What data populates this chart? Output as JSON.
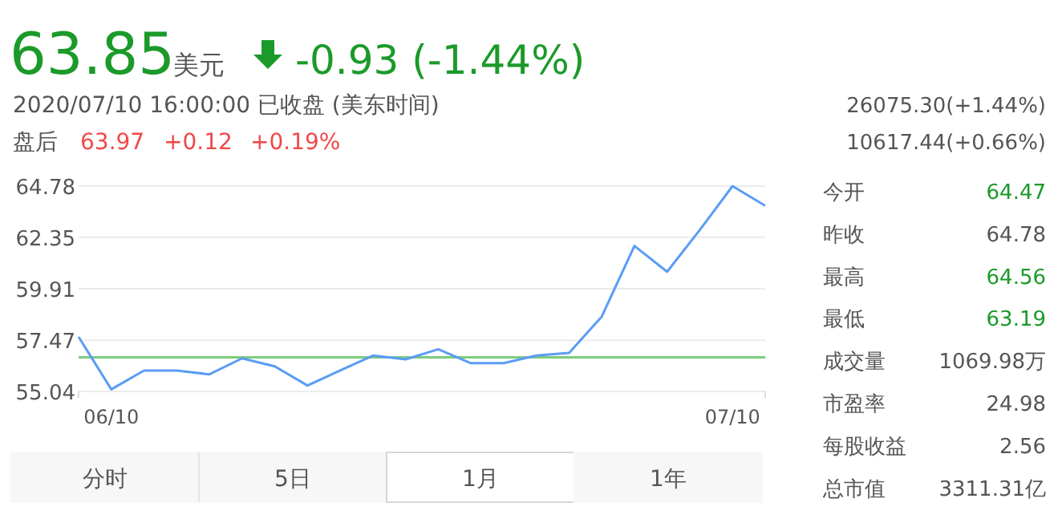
{
  "chart_data": [
    {
      "type": "line",
      "title": "63.85",
      "subtitle": "2020/07/10 16:00:00  已收盘  (美东时间)",
      "annotations": [
        "美元",
        "-0.93 (-1.44%)",
        "盘后",
        "63.97",
        "+0.12",
        "+0.19%",
        "26075.30(+1.44%)",
        "10617.44(+0.66%)",
        "分时",
        "5日",
        "1月",
        "1年"
      ],
      "categories": [
        null,
        "06/10",
        null,
        null,
        null,
        null,
        null,
        null,
        null,
        null,
        null,
        null,
        null,
        null,
        null,
        null,
        null,
        null,
        null,
        null,
        "07/10",
        null
      ],
      "series": [
        {
          "color": "#5b9cf6",
          "values": [
            57.63,
            55.14,
            56.03,
            56.03,
            55.85,
            56.61,
            56.23,
            55.32,
            56.03,
            56.74,
            56.56,
            57.04,
            56.38,
            56.38,
            56.74,
            56.87,
            58.59,
            61.94,
            60.72,
            62.7,
            64.78,
            63.85
          ]
        }
      ],
      "ylim": [
        55.04,
        64.78
      ],
      "yticks": [
        55.04,
        57.47,
        59.91,
        62.35,
        64.78
      ],
      "grid": "y",
      "ref_lines": [
        {
          "axis": "y",
          "value": 56.66,
          "color": "#7ccc7c"
        }
      ]
    },
    {
      "type": "other",
      "annotations": [
        "今开",
        "64.47",
        "昨收",
        "64.78",
        "最高",
        "64.56",
        "最低",
        "63.19",
        "成交量",
        "1069.98万",
        "市盈率",
        "24.98",
        "每股收益",
        "2.56",
        "总市值",
        "3311.31亿"
      ]
    }
  ]
}
